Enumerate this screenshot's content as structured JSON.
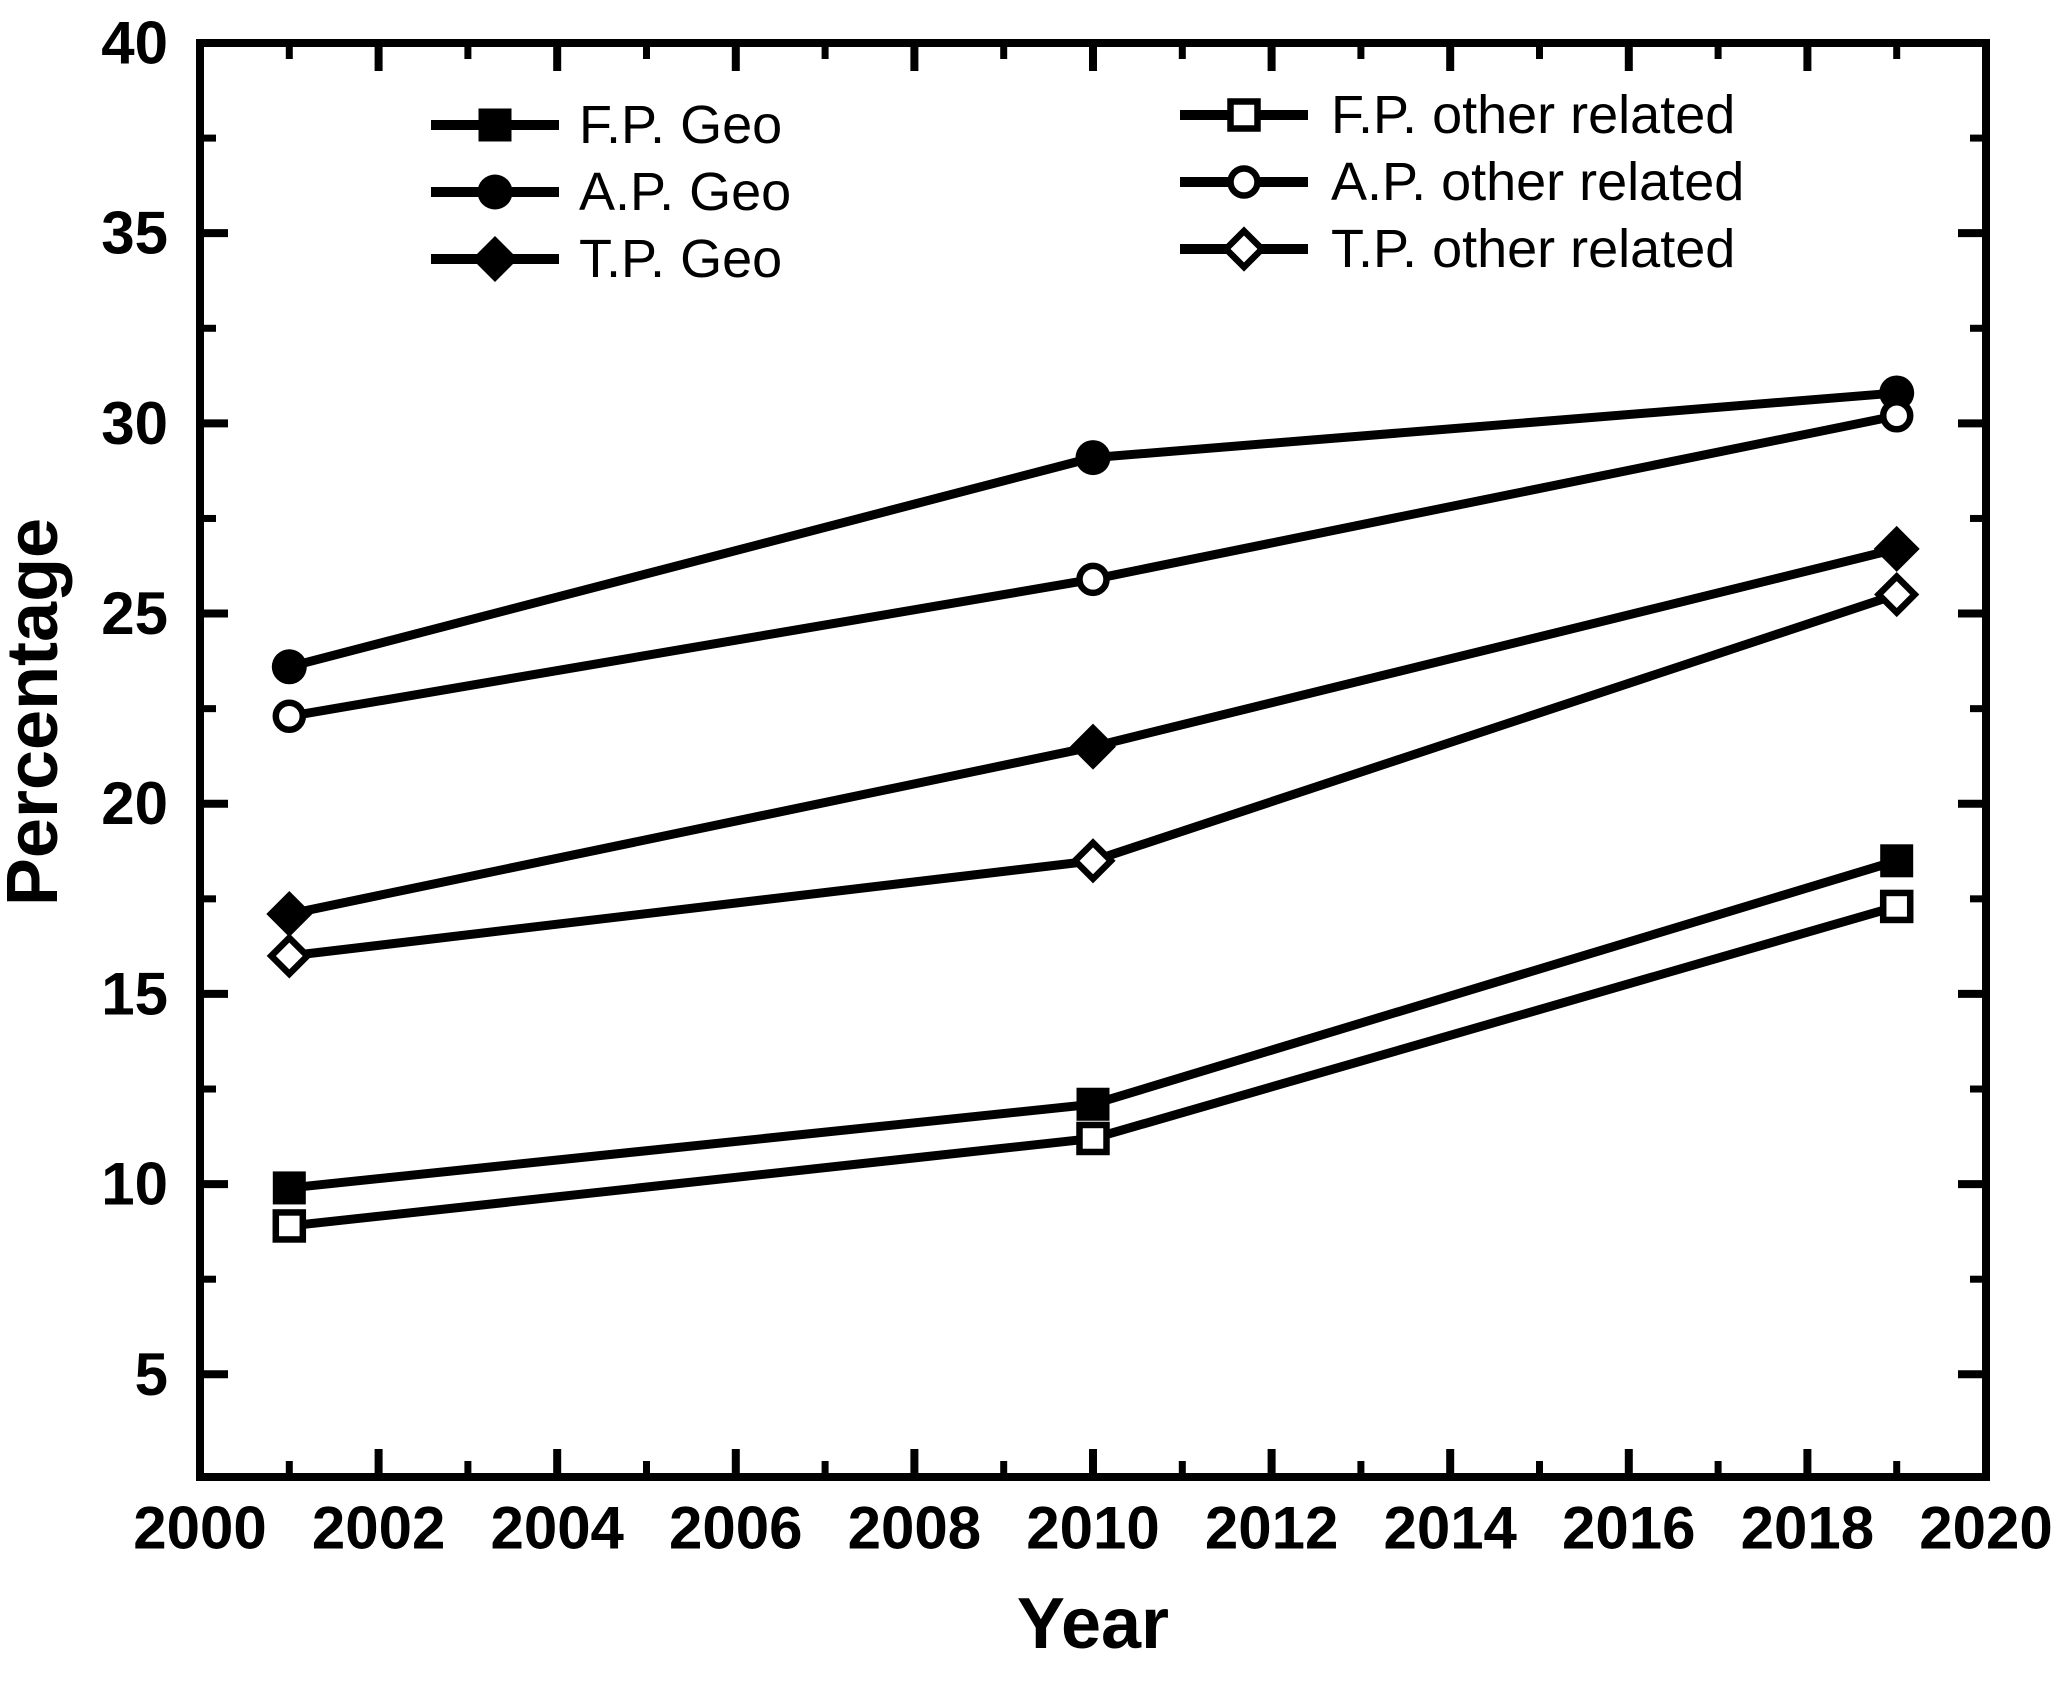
{
  "chart_data": {
    "type": "line",
    "title": "",
    "xlabel": "Year",
    "ylabel": "Percentage",
    "x": [
      2001,
      2010,
      2019
    ],
    "series": [
      {
        "name": "F.P. Geo",
        "marker": "filled-square-marker-icon",
        "values": [
          9.9,
          12.1,
          18.5
        ]
      },
      {
        "name": "A.P. Geo",
        "marker": "filled-circle-marker-icon",
        "values": [
          23.6,
          29.1,
          30.8
        ]
      },
      {
        "name": "T.P. Geo",
        "marker": "filled-diamond-marker-icon",
        "values": [
          17.1,
          21.5,
          26.7
        ]
      },
      {
        "name": "F.P. other related",
        "marker": "open-square-marker-icon",
        "values": [
          8.9,
          11.2,
          17.3
        ]
      },
      {
        "name": "A.P. other related",
        "marker": "open-circle-marker-icon",
        "values": [
          22.3,
          25.9,
          30.2
        ]
      },
      {
        "name": "T.P. other related",
        "marker": "open-diamond-marker-icon",
        "values": [
          16.0,
          18.5,
          25.5
        ]
      }
    ],
    "xlim": [
      2000,
      2020
    ],
    "ylim": [
      2.3,
      40
    ],
    "x_tick_labels": [
      2000,
      2002,
      2004,
      2006,
      2008,
      2010,
      2012,
      2014,
      2016,
      2018,
      2020
    ],
    "y_tick_labels": [
      5,
      10,
      15,
      20,
      25,
      30,
      35,
      40
    ],
    "x_minor_step": 1,
    "y_minor_step": 2.5,
    "grid": false,
    "legend_position": "top-inside, two columns, no frame",
    "line_color": "#000000",
    "background_color": "#ffffff"
  }
}
